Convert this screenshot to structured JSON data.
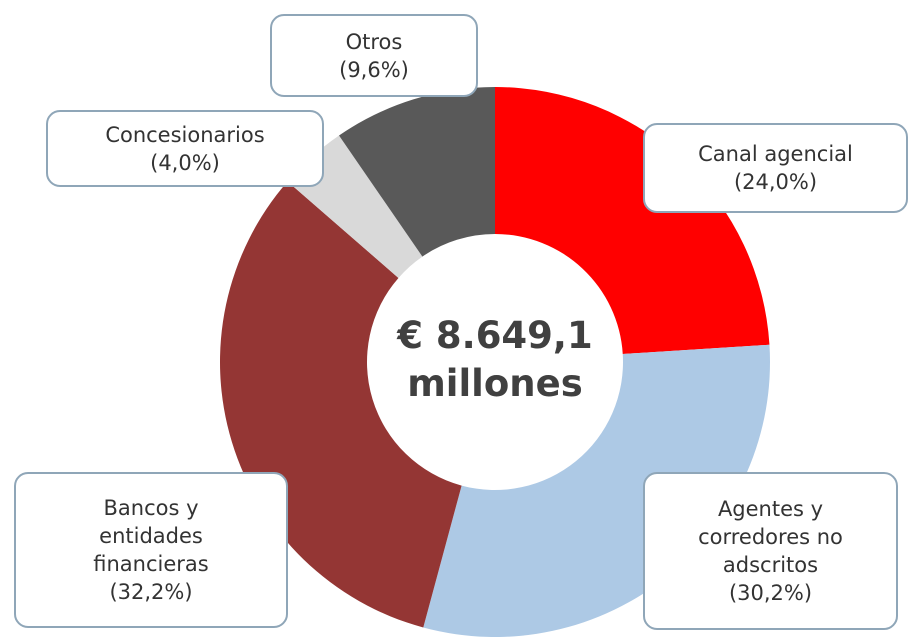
{
  "chart_data": {
    "type": "donut",
    "center_label": "€ 8.649,1 millones",
    "categories": [
      "Canal agencial",
      "Agentes y corredores no adscritos",
      "Bancos y entidades financieras",
      "Concesionarios",
      "Otros"
    ],
    "values": [
      24.0,
      30.2,
      32.2,
      4.0,
      9.6
    ],
    "value_labels": [
      "(24,0%)",
      "(30,2%)",
      "(32,2%)",
      "(4,0%)",
      "(9,6%)"
    ],
    "colors": [
      "#ff0000",
      "#adc9e5",
      "#943634",
      "#d9d9d9",
      "#595959"
    ]
  }
}
